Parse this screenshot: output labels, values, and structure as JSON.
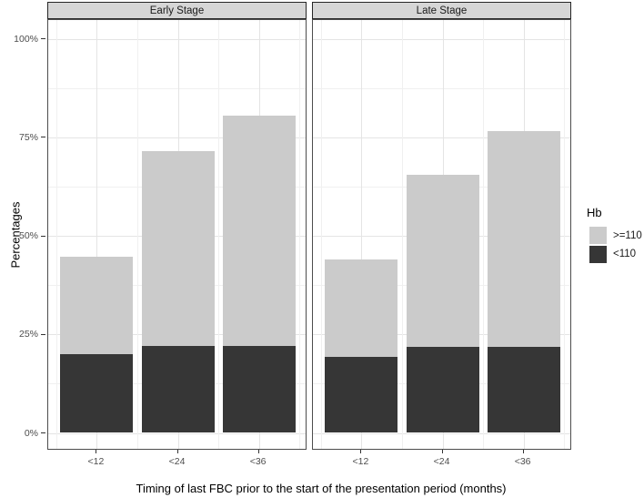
{
  "chart_data": {
    "type": "bar",
    "variant": "stacked, faceted (2 panels), percentages",
    "title": "",
    "xlabel": "Timing of last FBC prior to the start of the presentation period (months)",
    "ylabel": "Percentages",
    "ylim": [
      0,
      100
    ],
    "ytick_values": [
      0,
      25,
      50,
      75,
      100
    ],
    "ytick_labels": [
      "0%",
      "25%",
      "50%",
      "75%",
      "100%"
    ],
    "categories": [
      "<12",
      "<24",
      "<36"
    ],
    "grid": "major and minor horizontal + vertical, light grey on white",
    "legend": {
      "title": "Hb",
      "position": "right",
      "entries": [
        {
          "label": ">=110",
          "color": "#cbcbcb"
        },
        {
          "label": "<110",
          "color": "#363636"
        }
      ]
    },
    "facets": [
      {
        "label": "Early Stage",
        "series": [
          {
            "name": "<110",
            "stack_order": 0,
            "color": "#363636",
            "values": [
              19.9,
              22.1,
              22.1
            ]
          },
          {
            "name": ">=110",
            "stack_order": 1,
            "color": "#cbcbcb",
            "values": [
              24.7,
              49.3,
              58.4
            ]
          }
        ],
        "stacked_totals": [
          44.6,
          71.4,
          80.5
        ]
      },
      {
        "label": "Late Stage",
        "series": [
          {
            "name": "<110",
            "stack_order": 0,
            "color": "#363636",
            "values": [
              19.2,
              21.8,
              21.8
            ]
          },
          {
            "name": ">=110",
            "stack_order": 1,
            "color": "#cbcbcb",
            "values": [
              24.7,
              43.7,
              54.7
            ]
          }
        ],
        "stacked_totals": [
          43.9,
          65.5,
          76.5
        ]
      }
    ],
    "colors": {
      "strip_background": "#d6d6d6",
      "panel_border": "#4d4d4d",
      "grid_major": "#e4e4e4",
      "grid_minor": "#f0f0f0",
      "tick_text": "#4d4d4d"
    }
  }
}
